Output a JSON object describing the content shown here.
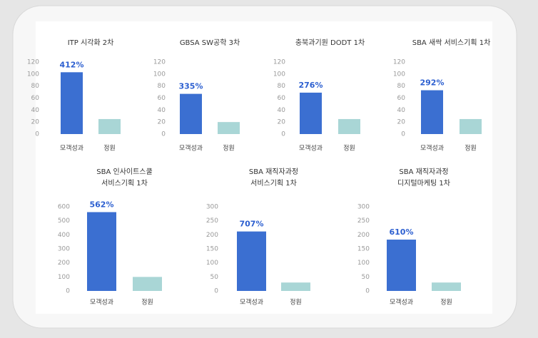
{
  "chart_data": [
    {
      "type": "bar",
      "title": [
        "ITP 시각화 2차"
      ],
      "categories": [
        "모객성과",
        "정원"
      ],
      "values": [
        103,
        25
      ],
      "colors": [
        "#3b6fd1",
        "#a9d6d6"
      ],
      "annotation": "412%",
      "ylim": [
        0,
        120
      ],
      "yticks": [
        0,
        20,
        40,
        60,
        80,
        100,
        120
      ]
    },
    {
      "type": "bar",
      "title": [
        "GBSA SW공학 3차"
      ],
      "categories": [
        "모객성과",
        "정원"
      ],
      "values": [
        67,
        20
      ],
      "colors": [
        "#3b6fd1",
        "#a9d6d6"
      ],
      "annotation": "335%",
      "ylim": [
        0,
        120
      ],
      "yticks": [
        0,
        20,
        40,
        60,
        80,
        100,
        120
      ]
    },
    {
      "type": "bar",
      "title": [
        "충북과기원 DODT 1차"
      ],
      "categories": [
        "모객성과",
        "정원"
      ],
      "values": [
        69,
        25
      ],
      "colors": [
        "#3b6fd1",
        "#a9d6d6"
      ],
      "annotation": "276%",
      "ylim": [
        0,
        120
      ],
      "yticks": [
        0,
        20,
        40,
        60,
        80,
        100,
        120
      ]
    },
    {
      "type": "bar",
      "title": [
        "SBA 새싹 서비스기획 1차"
      ],
      "categories": [
        "모객성과",
        "정원"
      ],
      "values": [
        73,
        25
      ],
      "colors": [
        "#3b6fd1",
        "#a9d6d6"
      ],
      "annotation": "292%",
      "ylim": [
        0,
        120
      ],
      "yticks": [
        0,
        20,
        40,
        60,
        80,
        100,
        120
      ]
    },
    {
      "type": "bar",
      "title": [
        "SBA 인사이트스쿨",
        "서비스기획 1차"
      ],
      "categories": [
        "모객성과",
        "정원"
      ],
      "values": [
        562,
        100
      ],
      "colors": [
        "#3b6fd1",
        "#a9d6d6"
      ],
      "annotation": "562%",
      "ylim": [
        0,
        600
      ],
      "yticks": [
        0,
        100,
        200,
        300,
        400,
        500,
        600
      ]
    },
    {
      "type": "bar",
      "title": [
        "SBA 재직자과정",
        "서비스기획 1차"
      ],
      "categories": [
        "모객성과",
        "정원"
      ],
      "values": [
        212,
        30
      ],
      "colors": [
        "#3b6fd1",
        "#a9d6d6"
      ],
      "annotation": "707%",
      "ylim": [
        0,
        300
      ],
      "yticks": [
        0,
        50,
        100,
        150,
        200,
        250,
        300
      ]
    },
    {
      "type": "bar",
      "title": [
        "SBA 재직자과정",
        "디지털마케팅 1차"
      ],
      "categories": [
        "모객성과",
        "정원"
      ],
      "values": [
        183,
        30
      ],
      "colors": [
        "#3b6fd1",
        "#a9d6d6"
      ],
      "annotation": "610%",
      "ylim": [
        0,
        300
      ],
      "yticks": [
        0,
        50,
        100,
        150,
        200,
        250,
        300
      ]
    }
  ]
}
